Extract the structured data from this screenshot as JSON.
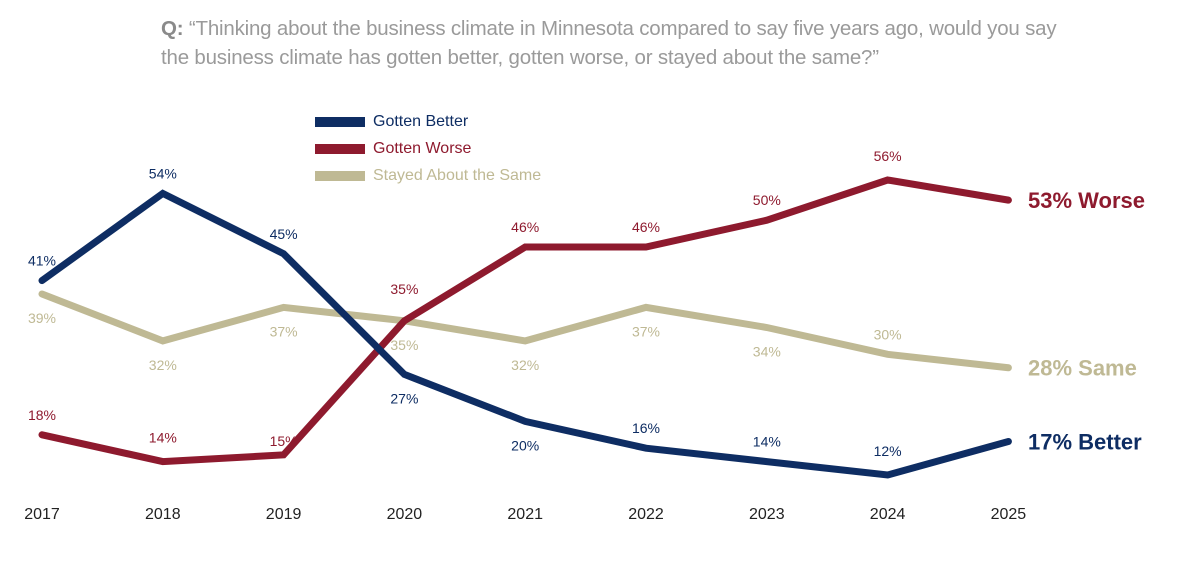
{
  "question": {
    "prefix": "Q:",
    "text": "“Thinking about the business climate in Minnesota compared to say five years ago, would you say the business climate has gotten better, gotten worse, or stayed about the same?”"
  },
  "colors": {
    "better": "#0e2d63",
    "worse": "#8e1a2e",
    "same": "#bfb994",
    "axis_text": "#222222"
  },
  "legend": [
    {
      "label": "Gotten Better",
      "series": "better"
    },
    {
      "label": "Gotten Worse",
      "series": "worse"
    },
    {
      "label": "Stayed About the Same",
      "series": "same"
    }
  ],
  "chart_data": {
    "type": "line",
    "title": "“Thinking about the business climate in Minnesota compared to say five years ago, would you say the business climate has gotten better, gotten worse, or stayed about the same?”",
    "xlabel": "",
    "ylabel": "",
    "categories": [
      "2017",
      "2018",
      "2019",
      "2020",
      "2021",
      "2022",
      "2023",
      "2024",
      "2025"
    ],
    "ylim": [
      10,
      58
    ],
    "grid": false,
    "legend_position": "top-center",
    "series": [
      {
        "key": "better",
        "name": "Gotten Better",
        "values": [
          41,
          54,
          45,
          27,
          20,
          16,
          14,
          12,
          17
        ],
        "labels": [
          "41%",
          "54%",
          "45%",
          "27%",
          "20%",
          "16%",
          "14%",
          "12%",
          null
        ],
        "end_label": "17% Better"
      },
      {
        "key": "worse",
        "name": "Gotten Worse",
        "values": [
          18,
          14,
          15,
          35,
          46,
          46,
          50,
          56,
          53
        ],
        "labels": [
          "18%",
          "14%",
          "15%",
          "35%",
          "46%",
          "46%",
          "50%",
          "56%",
          null
        ],
        "end_label": "53% Worse"
      },
      {
        "key": "same",
        "name": "Stayed About the Same",
        "values": [
          39,
          32,
          37,
          35,
          32,
          37,
          34,
          30,
          28
        ],
        "labels": [
          "39%",
          "32%",
          "37%",
          "35%",
          "32%",
          "37%",
          "34%",
          "30%",
          null
        ],
        "end_label": "28% Same"
      }
    ]
  }
}
